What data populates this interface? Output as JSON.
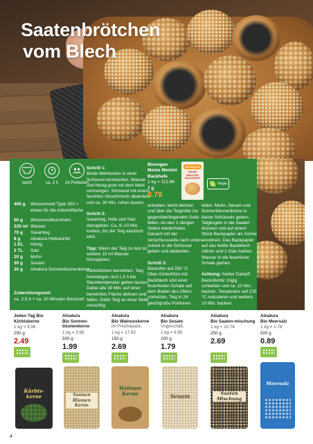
{
  "headline": {
    "line1": "Saatenbrötchen",
    "line2": "vom Blech"
  },
  "recipe_meta": [
    {
      "icon": "chef-hat-icon",
      "label": "leicht"
    },
    {
      "icon": "clock-icon",
      "label": "ca. 3 h"
    },
    {
      "icon": "servings-icon",
      "label": "24 Portionen"
    }
  ],
  "ingredients": [
    {
      "qty": "400 g",
      "name": "Weizenmehl Type 550 + etwas für die Arbeitsfläche"
    },
    {
      "qty": "50 g",
      "name": "Weizenvollkornmehl"
    },
    {
      "qty": "220 ml",
      "name": "Wasser"
    },
    {
      "qty": "70 g",
      "name": "Sauerteig"
    },
    {
      "qty": "8 g",
      "name": "Alnatura Hefewürfel"
    },
    {
      "qty": "1 EL",
      "name": "Honig"
    },
    {
      "qty": "2 TL",
      "name": "Salz"
    },
    {
      "qty": "20 g",
      "name": "Mohn"
    },
    {
      "qty": "30 g",
      "name": "Sesam"
    },
    {
      "qty": "30 g",
      "name": "Alnatura Sonnenblumenkerne"
    }
  ],
  "prep_time": {
    "label": "Zubereitungszeit:",
    "value": "ca. 2,5 h + ca. 20 Minuten Backzeit"
  },
  "steps_col1": [
    {
      "head": "Schritt 1:",
      "text": "Beide Mehlsorten in einer Schüssel vermischen. Wasser und Honig grob mit dem Mehl vermengen. Schüssel mit einem feuchten Geschirrtuch abdecken und ca. 30 Min. ruhen lassen."
    },
    {
      "head": "Schritt 2:",
      "text": "Sauerteig, Hefe und Salz dazugeben. Ca. 8–10 Min. kneten, bis der Teig elastisch wird."
    },
    {
      "head": "Tipp:",
      "text": "Wenn der Teig zu fest ist, weitere 10 ml Wasser hinzugeben."
    },
    {
      "head": "",
      "text": "Gärkörbchen bemehlen, Teig hineinlegen und 1,5 h bei Raumtemperatur gehen lassen. Dabei alle 30 Min. auf einer bemehlten Fläche dehnen und falten. Dafür Teig an einer Seite vorsichtig"
    }
  ],
  "steps_col2": [
    {
      "head": "",
      "text": "anheben, leicht dehnen und über die Teigmitte zur gegenüberliegenden Seite falten. An den 3 übrigen Seiten wiederholen. Danach mit der Verschlussseite nach unten zurück in die Schüssel geben und abdecken."
    },
    {
      "head": "Schritt 3:",
      "text": "Backofen auf 250 °C Ober-/Unterhitze mit Backblech und einer feuerfesten Schale auf dem Boden des Ofens vorheizen. Teig in 24 gleichgroße Portionen"
    }
  ],
  "steps_col3": [
    {
      "head": "",
      "text": "teilen. Mohn, Sesam und Sonnenblumenkerne in kleine Schüsseln geben. Teigkugeln in die Saaten drücken und auf einem Stück Backpapier als Sonne anordnen. Das Backpapier auf das heiße Backblech ziehen und 1 Glas heißes Wasser in die feuerfeste Schale gießen."
    },
    {
      "head": "Achtung:",
      "text": "heißer Dampf! Backofentür zügig schließen und ca. 10 Min. backen. Temperatur auf 210 °C reduzieren und weitere 10 Min. backen."
    }
  ],
  "featured_product": {
    "brand": "Biovegan",
    "name": "Meine Meister Backhefe",
    "unit_price": "1 kg = 112.86",
    "weight": "7 g",
    "price": "0.79",
    "pack_logo": "BIOVEGAN",
    "pack_label": "MEINE MEISTER BACKHEFE",
    "badge": "Vegan"
  },
  "products": [
    {
      "brand": "Jeden Tag Bio",
      "name": "Kürbiskerne",
      "sub": "",
      "unit_price": "1 kg = 9.96",
      "weight": "250 g",
      "price": "2.49",
      "highlight": true,
      "pack_text": "Kürbis-kerne",
      "pack_color": "#2c2c2c"
    },
    {
      "brand": "Alnatura",
      "name": "Bio Sonnen-blumenkerne",
      "sub": "",
      "unit_price": "1 kg = 3.98",
      "weight": "500 g",
      "price": "1.99",
      "highlight": false,
      "pack_text": "Sonnen Blumen Kerne",
      "pack_color": "#d9c9a3"
    },
    {
      "brand": "Alnatura",
      "name": "Bio Walnusskerne",
      "sub": "im Frischepack,",
      "unit_price": "1 kg = 17.93",
      "weight": "150 g",
      "price": "2.69",
      "highlight": false,
      "pack_text": "Walnuss Kerne",
      "pack_color": "#c8a06a"
    },
    {
      "brand": "Alnatura",
      "name": "Bio Sesam",
      "sub": "Ungeschält,",
      "unit_price": "1 kg = 8.95",
      "weight": "200 g",
      "price": "1.79",
      "highlight": false,
      "pack_text": "Sesam",
      "pack_color": "#e7dcc4"
    },
    {
      "brand": "Alnatura",
      "name": "Bio Saaten-mischung",
      "sub": "",
      "unit_price": "1 kg = 10.76",
      "weight": "250 g",
      "price": "2.69",
      "highlight": false,
      "pack_text": "Saaten Mischung",
      "pack_color": "#6b5a3e"
    },
    {
      "brand": "Alnatura",
      "name": "Bio Meersalz",
      "sub": "",
      "unit_price": "1 kg = 1.78",
      "weight": "500 g",
      "price": "0.89",
      "highlight": false,
      "pack_text": "Meersalz",
      "pack_color": "#2f77c0"
    }
  ],
  "page_number": "4"
}
